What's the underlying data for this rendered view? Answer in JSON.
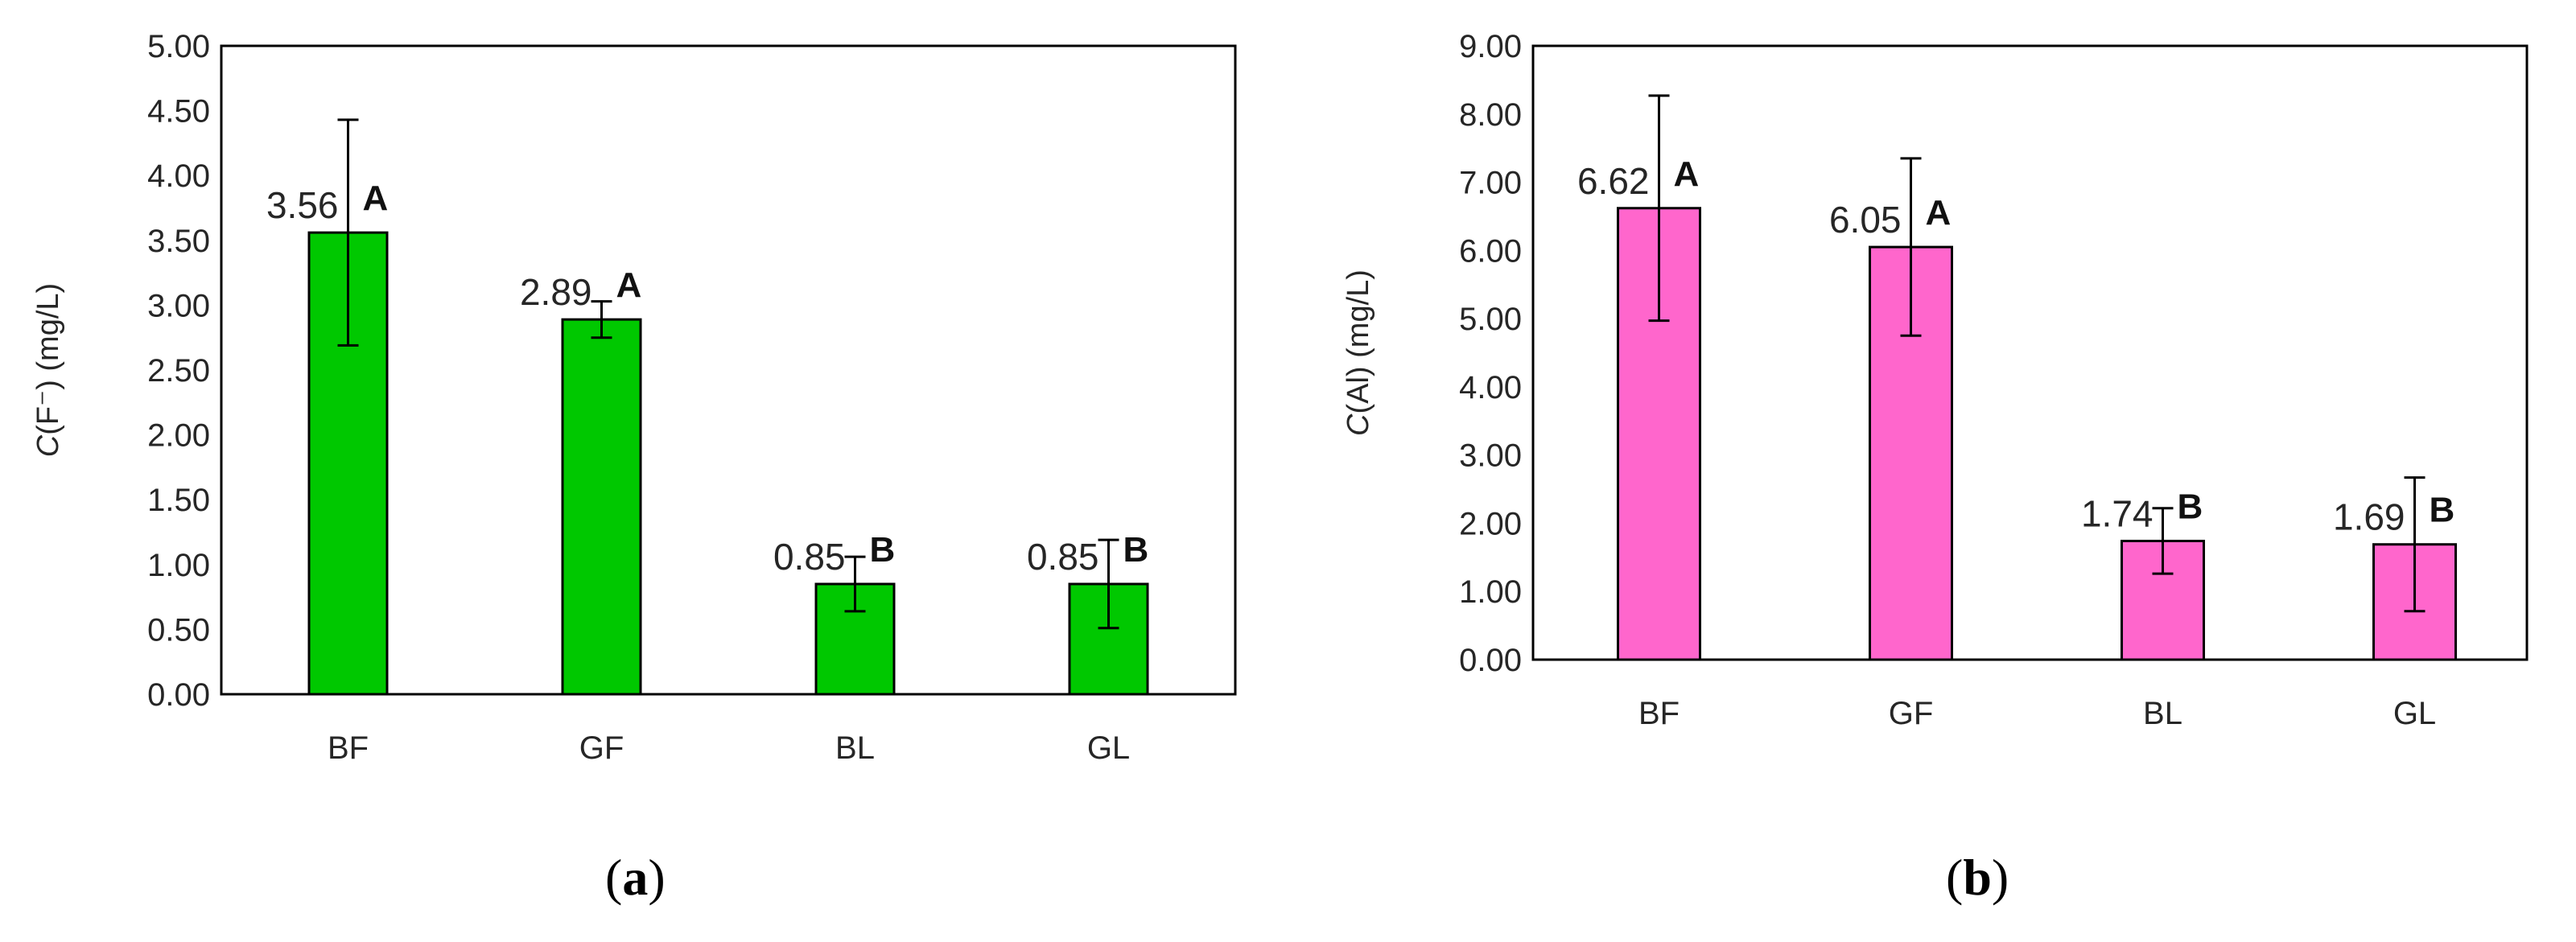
{
  "chart_data": [
    {
      "type": "bar",
      "panel_label": "a",
      "ylabel_italic": "C",
      "ylabel_rest": "(F⁻) (mg/L)",
      "xlabel": "",
      "categories": [
        "BF",
        "GF",
        "BL",
        "GL"
      ],
      "values": [
        3.56,
        2.89,
        0.85,
        0.85
      ],
      "value_labels": [
        "3.56",
        "2.89",
        "0.85",
        "0.85"
      ],
      "errors": [
        0.87,
        0.14,
        0.21,
        0.34
      ],
      "significance": [
        "A",
        "A",
        "B",
        "B"
      ],
      "ylim": [
        0,
        5
      ],
      "yticks": [
        "0.00",
        "0.50",
        "1.00",
        "1.50",
        "2.00",
        "2.50",
        "3.00",
        "3.50",
        "4.00",
        "4.50",
        "5.00"
      ],
      "bar_color": "#00C800",
      "grid": false
    },
    {
      "type": "bar",
      "panel_label": "b",
      "ylabel_italic": "C",
      "ylabel_rest": "(Al) (mg/L)",
      "xlabel": "",
      "categories": [
        "BF",
        "GF",
        "BL",
        "GL"
      ],
      "values": [
        6.62,
        6.05,
        1.74,
        1.69
      ],
      "value_labels": [
        "6.62",
        "6.05",
        "1.74",
        "1.69"
      ],
      "errors": [
        1.65,
        1.3,
        0.48,
        0.98
      ],
      "significance": [
        "A",
        "A",
        "B",
        "B"
      ],
      "ylim": [
        0,
        9
      ],
      "yticks": [
        "0.00",
        "1.00",
        "2.00",
        "3.00",
        "4.00",
        "5.00",
        "6.00",
        "7.00",
        "8.00",
        "9.00"
      ],
      "bar_color": "#FF66CC",
      "grid": false
    }
  ]
}
